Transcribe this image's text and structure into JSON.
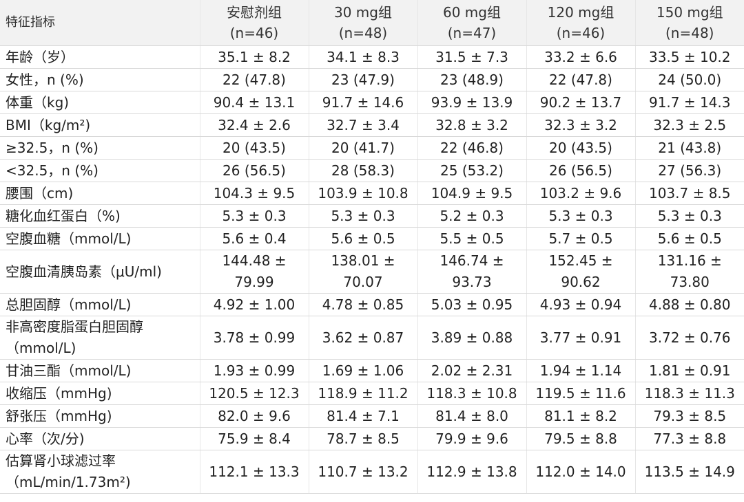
{
  "chart_data": {
    "type": "table",
    "columns": [
      {
        "name": "安慰剂组",
        "n": "(n=46)"
      },
      {
        "name": "30 mg组",
        "n": "(n=48)"
      },
      {
        "name": "60 mg组",
        "n": "(n=47)"
      },
      {
        "name": "120 mg组",
        "n": "(n=46)"
      },
      {
        "name": "150 mg组",
        "n": "(n=48)"
      }
    ],
    "row_header_label": "特征指标",
    "rows": [
      {
        "label": "年龄（岁）",
        "values": [
          "35.1 ± 8.2",
          "34.1 ± 8.3",
          "31.5 ± 7.3",
          "33.2 ± 6.6",
          "33.5 ± 10.2"
        ]
      },
      {
        "label": "女性，n (%)",
        "values": [
          "22 (47.8)",
          "23 (47.9)",
          "23 (48.9)",
          "22 (47.8)",
          "24 (50.0)"
        ]
      },
      {
        "label": "体重（kg)",
        "values": [
          "90.4 ± 13.1",
          "91.7 ± 14.6",
          "93.9 ± 13.9",
          "90.2 ± 13.7",
          "91.7 ± 14.3"
        ]
      },
      {
        "label": "BMI（kg/m²)",
        "values": [
          "32.4 ± 2.6",
          "32.7 ± 3.4",
          "32.8 ± 3.2",
          "32.3 ± 3.2",
          "32.3 ± 2.5"
        ]
      },
      {
        "label": "≥32.5，n (%)",
        "values": [
          "20 (43.5)",
          "20 (41.7)",
          "22 (46.8)",
          "20 (43.5)",
          "21 (43.8)"
        ]
      },
      {
        "label": "<32.5，n (%)",
        "values": [
          "26 (56.5)",
          "28 (58.3)",
          "25 (53.2)",
          "26 (56.5)",
          "27 (56.3)"
        ]
      },
      {
        "label": "腰围（cm)",
        "values": [
          "104.3 ± 9.5",
          "103.9 ± 10.8",
          "104.9 ± 9.5",
          "103.2 ± 9.6",
          "103.7 ± 8.5"
        ]
      },
      {
        "label": "糖化血红蛋白（%)",
        "values": [
          "5.3 ± 0.3",
          "5.3 ± 0.3",
          "5.2 ± 0.3",
          "5.3 ± 0.3",
          "5.3 ± 0.3"
        ]
      },
      {
        "label": "空腹血糖（mmol/L)",
        "values": [
          "5.6 ± 0.4",
          "5.6 ± 0.5",
          "5.5 ± 0.5",
          "5.7 ± 0.5",
          "5.6 ± 0.5"
        ]
      },
      {
        "label": "空腹血清胰岛素（μU/ml)",
        "values": [
          "144.48 ± 79.99",
          "138.01 ± 70.07",
          "146.74 ± 93.73",
          "152.45 ± 90.62",
          "131.16 ± 73.80"
        ],
        "two_line": true,
        "wrap_values": true
      },
      {
        "label": "总胆固醇（mmol/L)",
        "values": [
          "4.92 ± 1.00",
          "4.78 ± 0.85",
          "5.03 ± 0.95",
          "4.93 ± 0.94",
          "4.88 ± 0.80"
        ]
      },
      {
        "label": "非高密度脂蛋白胆固醇（mmol/L)",
        "values": [
          "3.78 ± 0.99",
          "3.62 ± 0.87",
          "3.89 ± 0.88",
          "3.77 ± 0.91",
          "3.72 ± 0.76"
        ],
        "two_line": true,
        "wrap_label": true
      },
      {
        "label": "甘油三酯（mmol/L)",
        "values": [
          "1.93 ± 0.99",
          "1.69 ± 1.06",
          "2.02 ± 2.31",
          "1.94 ± 1.14",
          "1.81 ± 0.91"
        ]
      },
      {
        "label": "收缩压（mmHg)",
        "values": [
          "120.5 ± 12.3",
          "118.9 ± 11.2",
          "118.3 ± 10.8",
          "119.5 ± 11.6",
          "118.3 ± 11.3"
        ]
      },
      {
        "label": "舒张压（mmHg)",
        "values": [
          "82.0 ± 9.6",
          "81.4 ± 7.1",
          "81.4 ± 8.0",
          "81.1 ± 8.2",
          "79.3 ± 8.5"
        ]
      },
      {
        "label": "心率（次/分)",
        "values": [
          "75.9 ± 8.4",
          "78.7 ± 8.5",
          "79.9 ± 9.6",
          "79.5 ± 8.8",
          "77.3 ± 8.8"
        ]
      },
      {
        "label": "估算肾小球滤过率（mL/min/1.73m²)",
        "values": [
          "112.1 ± 13.3",
          "110.7 ± 13.2",
          "112.9 ± 13.8",
          "112.0 ± 14.0",
          "113.5 ± 14.9"
        ],
        "two_line": true,
        "wrap_label": true
      }
    ]
  },
  "colors": {
    "header_bg": "#f2f2f2",
    "grid": "#d9d9d9",
    "text": "#222222"
  }
}
